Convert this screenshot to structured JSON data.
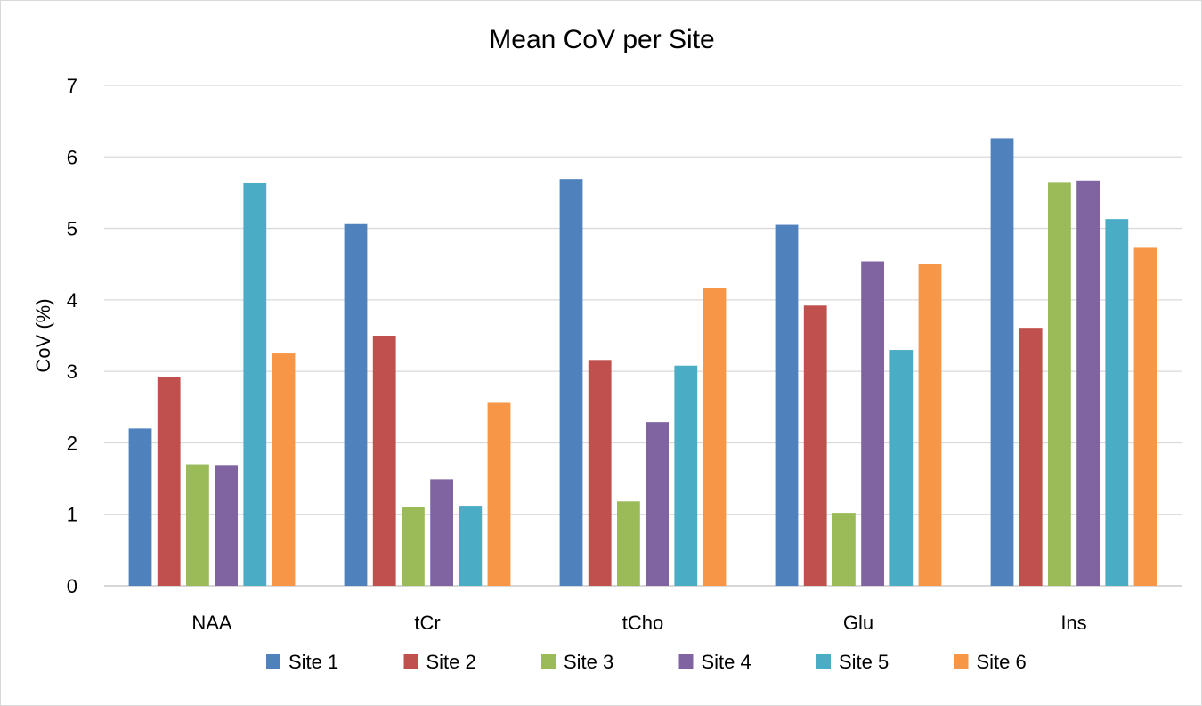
{
  "chart_data": {
    "type": "bar",
    "title": "Mean CoV per Site",
    "xlabel": "",
    "ylabel": "CoV (%)",
    "ylim": [
      0,
      7
    ],
    "yticks": [
      "0",
      "1",
      "2",
      "3",
      "4",
      "5",
      "6",
      "7"
    ],
    "grid": true,
    "legend_position": "bottom",
    "categories": [
      "NAA",
      "tCr",
      "tCho",
      "Glu",
      "Ins"
    ],
    "series": [
      {
        "name": "Site 1",
        "color": "#4f81bd",
        "values": [
          2.2,
          5.06,
          5.69,
          5.05,
          6.26
        ]
      },
      {
        "name": "Site 2",
        "color": "#c0504d",
        "values": [
          2.92,
          3.5,
          3.16,
          3.92,
          3.61
        ]
      },
      {
        "name": "Site 3",
        "color": "#9bbb59",
        "values": [
          1.7,
          1.1,
          1.18,
          1.02,
          5.65
        ]
      },
      {
        "name": "Site 4",
        "color": "#8064a2",
        "values": [
          1.69,
          1.49,
          2.29,
          4.54,
          5.67
        ]
      },
      {
        "name": "Site 5",
        "color": "#4bacc6",
        "values": [
          5.63,
          1.12,
          3.08,
          3.3,
          5.13
        ]
      },
      {
        "name": "Site 6",
        "color": "#f79646",
        "values": [
          3.25,
          2.56,
          4.17,
          4.5,
          4.74
        ]
      }
    ]
  }
}
